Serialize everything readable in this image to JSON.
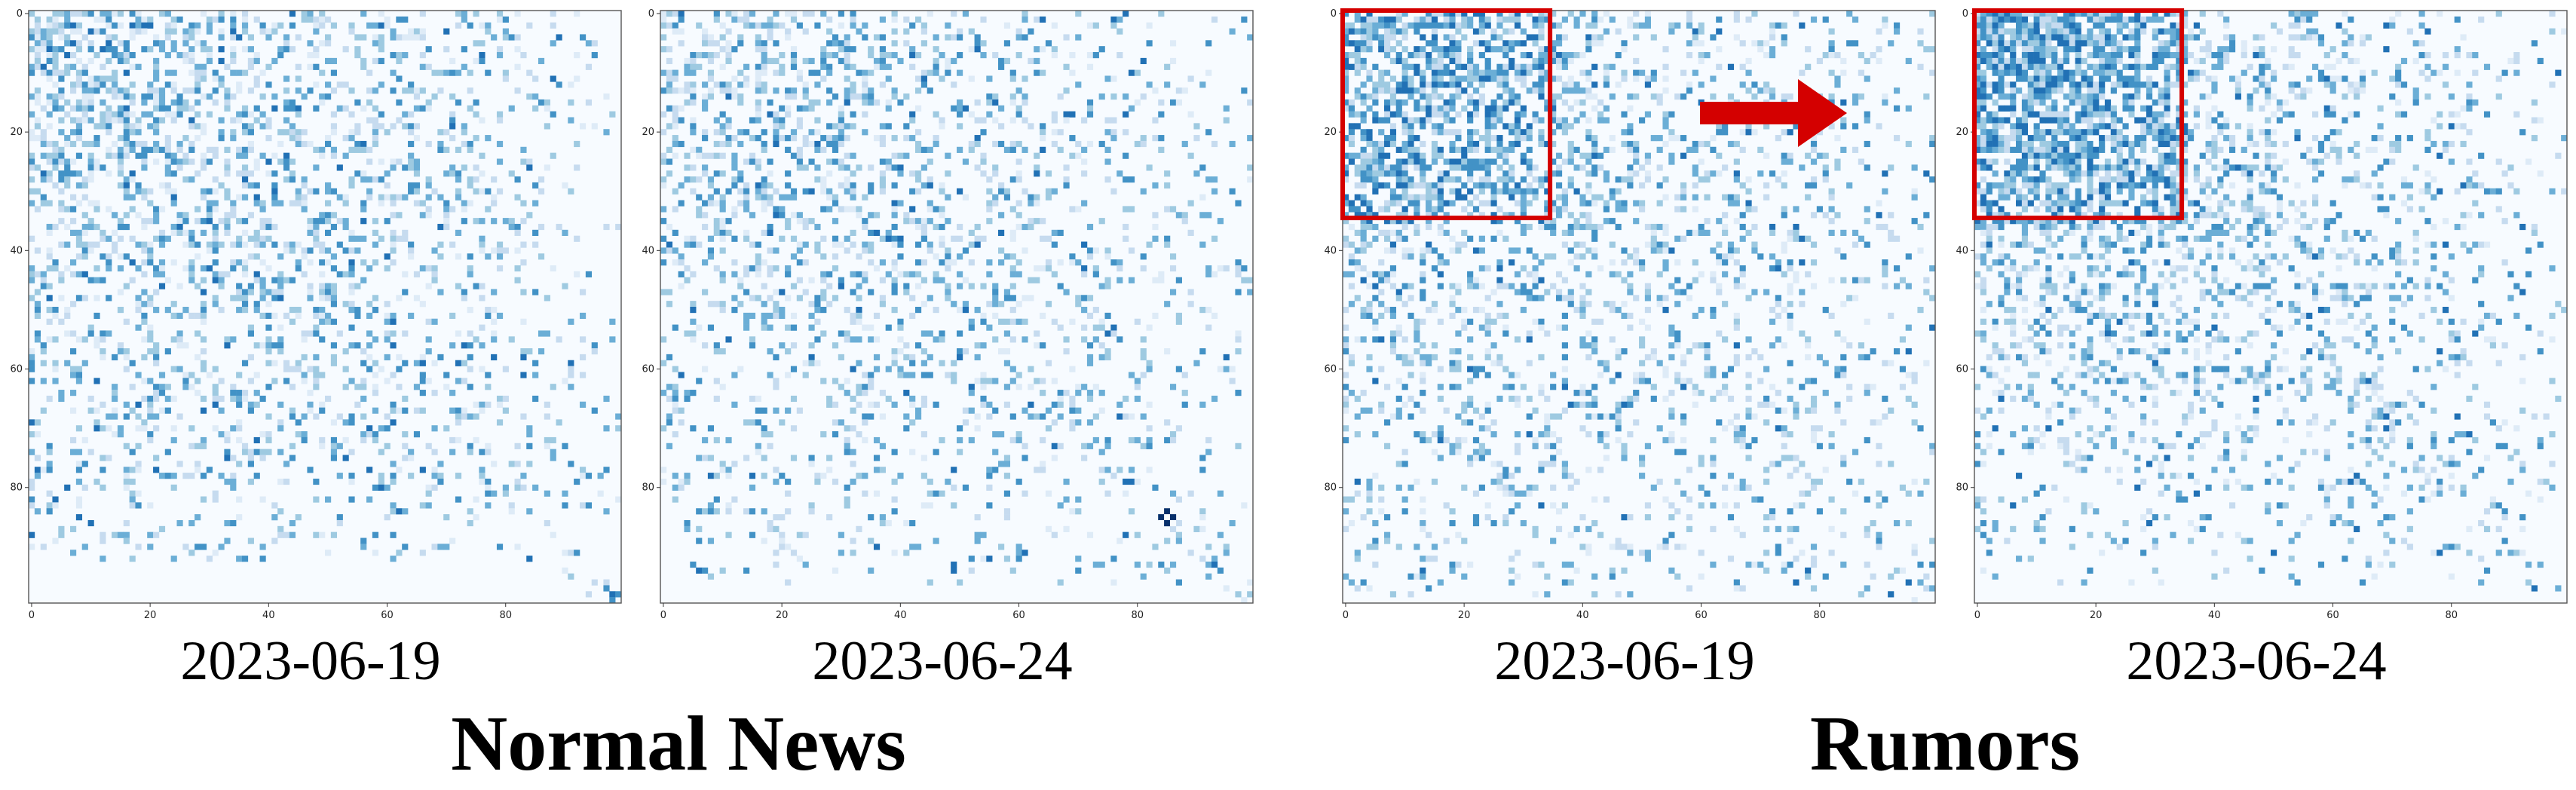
{
  "figure": {
    "group_titles": {
      "left": "Normal News",
      "right": "Rumors"
    },
    "colors": {
      "highlight": "#d40000",
      "cmap_low": "#f7fbff",
      "cmap_high": "#08306b"
    }
  },
  "chart_data": [
    {
      "type": "heatmap",
      "group": "Normal News",
      "xlabel": "",
      "ylabel": "",
      "date_label": "2023-06-19",
      "size": 100,
      "xticks": [
        0,
        20,
        40,
        60,
        80
      ],
      "yticks": [
        0,
        20,
        40,
        60,
        80
      ],
      "xlim": [
        0,
        99
      ],
      "ylim": [
        99,
        0
      ],
      "pattern": {
        "seed": 11,
        "density_top": 0.55,
        "density_bottom": 0.05,
        "cutoff_row": 92,
        "strong_block": null
      },
      "highlight": null,
      "arrow": false
    },
    {
      "type": "heatmap",
      "group": "Normal News",
      "xlabel": "",
      "ylabel": "",
      "date_label": "2023-06-24",
      "size": 100,
      "xticks": [
        0,
        20,
        40,
        60,
        80
      ],
      "yticks": [
        0,
        20,
        40,
        60,
        80
      ],
      "xlim": [
        0,
        99
      ],
      "ylim": [
        99,
        0
      ],
      "pattern": {
        "seed": 29,
        "density_top": 0.45,
        "density_bottom": 0.06,
        "cutoff_row": 96,
        "strong_block": [
          84,
          86
        ]
      },
      "highlight": null,
      "arrow": false
    },
    {
      "type": "heatmap",
      "group": "Rumors",
      "xlabel": "",
      "ylabel": "",
      "date_label": "2023-06-19",
      "size": 100,
      "xticks": [
        0,
        20,
        40,
        60,
        80
      ],
      "yticks": [
        0,
        20,
        40,
        60,
        80
      ],
      "xlim": [
        0,
        99
      ],
      "ylim": [
        99,
        0
      ],
      "pattern": {
        "seed": 53,
        "density_top": 0.5,
        "density_bottom": 0.08,
        "cutoff_row": 98,
        "strong_block": null
      },
      "highlight": {
        "x0": 0,
        "y0": 0,
        "x1": 35,
        "y1": 35
      },
      "arrow": true
    },
    {
      "type": "heatmap",
      "group": "Rumors",
      "xlabel": "",
      "ylabel": "",
      "date_label": "2023-06-24",
      "size": 100,
      "xticks": [
        0,
        20,
        40,
        60,
        80
      ],
      "yticks": [
        0,
        20,
        40,
        60,
        80
      ],
      "xlim": [
        0,
        99
      ],
      "ylim": [
        99,
        0
      ],
      "pattern": {
        "seed": 71,
        "density_top": 0.6,
        "density_bottom": 0.05,
        "cutoff_row": 96,
        "strong_block": null
      },
      "highlight": {
        "x0": 0,
        "y0": 0,
        "x1": 35,
        "y1": 35
      },
      "arrow": false
    }
  ]
}
